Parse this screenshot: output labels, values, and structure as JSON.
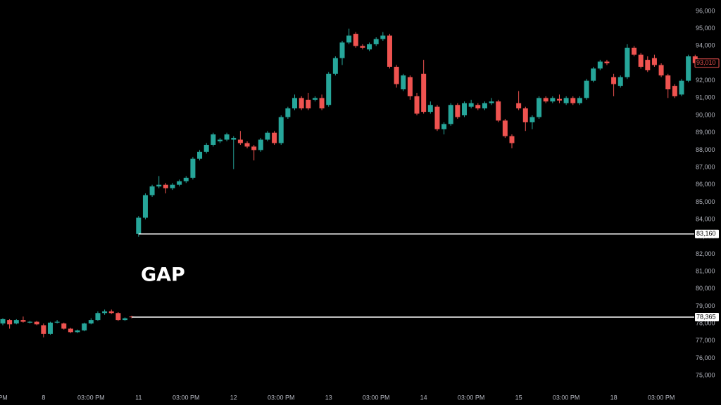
{
  "chart_data": {
    "type": "candlestick",
    "annotation": "GAP",
    "up_color": "#26a69a",
    "down_color": "#ef5350",
    "categories": [
      "PM",
      null,
      null,
      null,
      null,
      null,
      "8",
      null,
      null,
      null,
      null,
      null,
      null,
      "03:00 PM",
      null,
      null,
      null,
      null,
      null,
      null,
      "11",
      null,
      null,
      null,
      null,
      null,
      null,
      "03:00 PM",
      null,
      null,
      null,
      null,
      null,
      null,
      "12",
      null,
      null,
      null,
      null,
      null,
      null,
      "03:00 PM",
      null,
      null,
      null,
      null,
      null,
      null,
      "13",
      null,
      null,
      null,
      null,
      null,
      null,
      "03:00 PM",
      null,
      null,
      null,
      null,
      null,
      null,
      "14",
      null,
      null,
      null,
      null,
      null,
      null,
      "03:00 PM",
      null,
      null,
      null,
      null,
      null,
      null,
      "15",
      null,
      null,
      null,
      null,
      null,
      null,
      "03:00 PM",
      null,
      null,
      null,
      null,
      null,
      null,
      "18",
      null,
      null,
      null,
      null,
      null,
      null,
      "03:00 PM",
      null,
      null,
      null,
      null,
      null
    ],
    "open": [
      78000,
      78200,
      78000,
      78200,
      78050,
      78100,
      77900,
      77400,
      78050,
      78000,
      77700,
      77500,
      77600,
      78000,
      78200,
      78600,
      78700,
      78600,
      78200,
      78400,
      83160,
      84100,
      85400,
      85900,
      86000,
      85800,
      86000,
      86200,
      86400,
      87500,
      87900,
      88300,
      88500,
      88600,
      88600,
      88600,
      88400,
      88200,
      88000,
      88600,
      89000,
      88400,
      89900,
      90400,
      91000,
      90900,
      90900,
      91000,
      90600,
      92400,
      93300,
      94200,
      94700,
      94000,
      93800,
      94100,
      94400,
      94600,
      92800,
      91500,
      92200,
      91100,
      92400,
      90200,
      90500,
      89200,
      89500,
      90600,
      90000,
      90500,
      90600,
      90400,
      90700,
      90800,
      89700,
      88800,
      90700,
      90400,
      89600,
      89900,
      91000,
      90800,
      90950,
      90700,
      91000,
      90700,
      91000,
      92000,
      92700,
      93100,
      92200,
      91700,
      92200,
      93900,
      93500,
      93200,
      93300,
      92900,
      92300,
      91700,
      91200,
      92000,
      93400
    ],
    "high": [
      78300,
      78250,
      78250,
      78400,
      78150,
      78150,
      78000,
      78100,
      78200,
      78050,
      77750,
      77650,
      78050,
      78300,
      78700,
      78800,
      78800,
      78650,
      78350,
      78450,
      84200,
      85500,
      86000,
      86500,
      86100,
      86100,
      86300,
      86500,
      87600,
      88000,
      88400,
      89000,
      88700,
      89000,
      88800,
      89100,
      88500,
      88300,
      88700,
      89100,
      89100,
      90000,
      90500,
      91200,
      91100,
      91300,
      91100,
      91200,
      92500,
      93400,
      94300,
      95000,
      94800,
      94100,
      94200,
      94500,
      94800,
      94700,
      92900,
      92400,
      92300,
      91300,
      93200,
      90800,
      90600,
      89600,
      90700,
      90700,
      90800,
      90900,
      90700,
      90800,
      91000,
      90900,
      89800,
      88900,
      91400,
      90500,
      90000,
      91100,
      91100,
      91100,
      91200,
      91100,
      91100,
      91100,
      92100,
      92800,
      93200,
      93200,
      92400,
      92300,
      94100,
      94000,
      93600,
      93400,
      93500,
      93000,
      92400,
      91800,
      92100,
      93500,
      93500
    ],
    "low": [
      77900,
      77700,
      77950,
      78050,
      78000,
      77900,
      77200,
      77350,
      78000,
      77650,
      77450,
      77450,
      77550,
      77950,
      78150,
      78500,
      78550,
      78150,
      78150,
      78300,
      83000,
      84000,
      85300,
      85800,
      85500,
      85700,
      85900,
      86100,
      86300,
      87400,
      87800,
      88200,
      88400,
      88500,
      86900,
      88300,
      88100,
      87400,
      87900,
      88500,
      88300,
      88300,
      89800,
      90300,
      90300,
      90300,
      90800,
      90300,
      90500,
      92300,
      92900,
      94100,
      93900,
      93800,
      93700,
      94000,
      94300,
      92700,
      91600,
      91400,
      90900,
      90000,
      90100,
      90100,
      89100,
      88900,
      89400,
      89800,
      89900,
      90400,
      90300,
      90300,
      90600,
      89600,
      88700,
      88100,
      90300,
      89100,
      89200,
      89800,
      90700,
      90700,
      90700,
      90600,
      90600,
      90600,
      90900,
      91900,
      92600,
      92900,
      91100,
      91600,
      92100,
      93400,
      92700,
      92500,
      92800,
      92200,
      91000,
      91000,
      91100,
      91900,
      92900
    ],
    "close": [
      78250,
      77950,
      78200,
      78100,
      78100,
      77950,
      77400,
      78050,
      78100,
      77700,
      77500,
      77600,
      78000,
      78200,
      78600,
      78700,
      78600,
      78200,
      78300,
      78365,
      84100,
      85400,
      85900,
      86000,
      85800,
      86000,
      86200,
      86400,
      87500,
      87900,
      88300,
      88900,
      88600,
      88900,
      88700,
      88400,
      88200,
      88000,
      88600,
      89000,
      88400,
      89900,
      90400,
      91000,
      90400,
      90400,
      91000,
      90400,
      92400,
      93300,
      94200,
      94600,
      94000,
      93900,
      94100,
      94400,
      94600,
      92800,
      91800,
      92300,
      91100,
      90100,
      90200,
      90600,
      89200,
      89500,
      90600,
      89900,
      90700,
      90700,
      90400,
      90700,
      90800,
      89700,
      88800,
      88400,
      90400,
      89600,
      89900,
      91000,
      90800,
      91000,
      90850,
      91000,
      90700,
      91000,
      92000,
      92700,
      93100,
      93000,
      91800,
      92200,
      93900,
      93500,
      92800,
      92600,
      92900,
      92300,
      91500,
      91100,
      92000,
      93400,
      93010
    ],
    "ylim": [
      73300,
      96650
    ],
    "yticks": [
      {
        "value": 75000,
        "label": "75,000"
      },
      {
        "value": 76000,
        "label": "76,000"
      },
      {
        "value": 77000,
        "label": "77,000"
      },
      {
        "value": 78000,
        "label": "78,000"
      },
      {
        "value": 79000,
        "label": "79,000"
      },
      {
        "value": 80000,
        "label": "80,000"
      },
      {
        "value": 81000,
        "label": "81,000"
      },
      {
        "value": 82000,
        "label": "82,000"
      },
      {
        "value": 83000,
        "label": "83,000"
      },
      {
        "value": 84000,
        "label": "84,000"
      },
      {
        "value": 85000,
        "label": "85,000"
      },
      {
        "value": 86000,
        "label": "86,000"
      },
      {
        "value": 87000,
        "label": "87,000"
      },
      {
        "value": 88000,
        "label": "88,000"
      },
      {
        "value": 89000,
        "label": "89,000"
      },
      {
        "value": 90000,
        "label": "90,000"
      },
      {
        "value": 91000,
        "label": "91,000"
      },
      {
        "value": 92000,
        "label": "92,000"
      },
      {
        "value": 93000,
        "label": "93,000"
      },
      {
        "value": 94000,
        "label": "94,000"
      },
      {
        "value": 95000,
        "label": "95,000"
      },
      {
        "value": 96000,
        "label": "96,000"
      }
    ],
    "price_lines": [
      {
        "value": 83160,
        "label": "83,160"
      },
      {
        "value": 78365,
        "label": "78,365"
      }
    ],
    "last_price": {
      "value": 93010,
      "label": "93,010"
    }
  }
}
